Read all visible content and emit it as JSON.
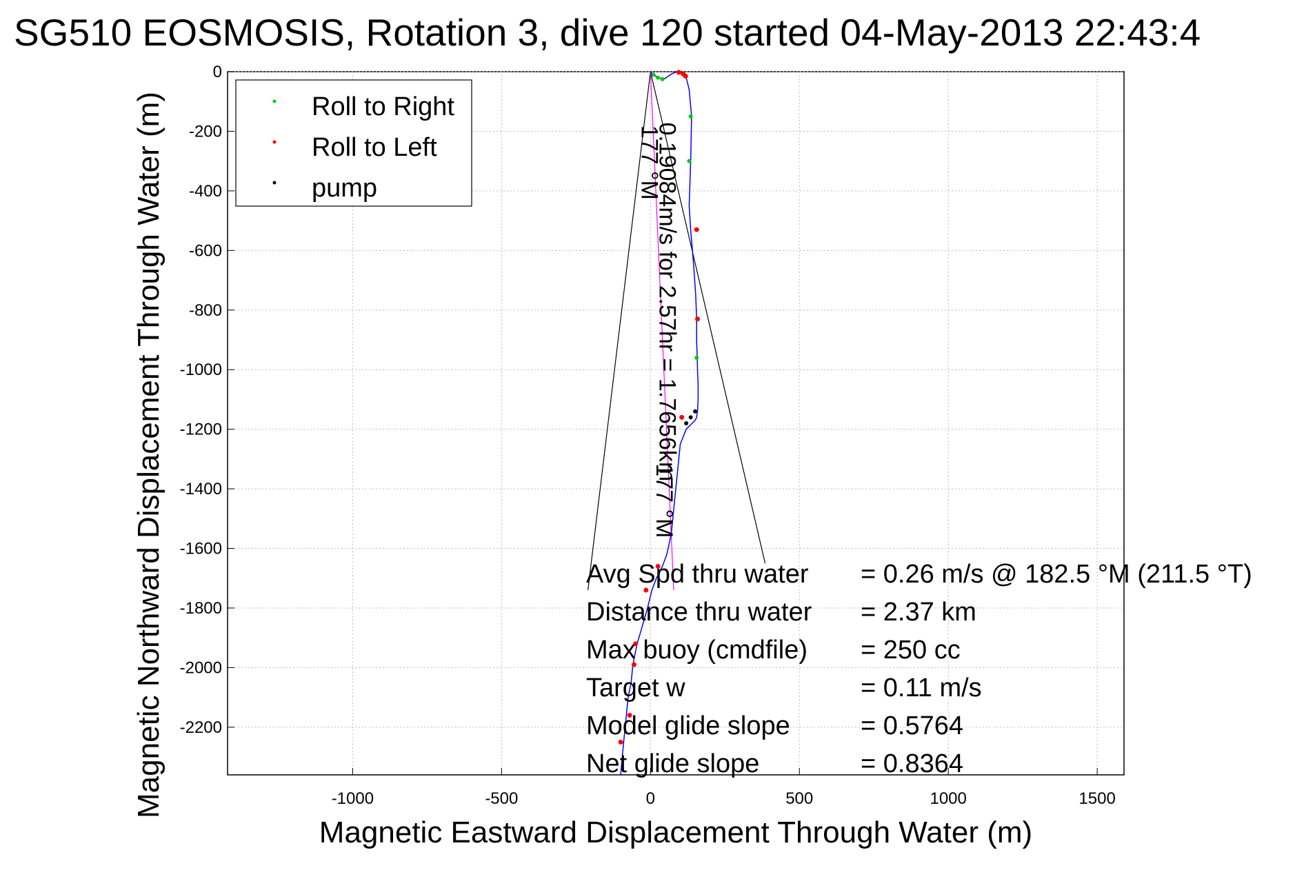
{
  "chart_data": {
    "type": "line",
    "title": "SG510 EOSMOSIS, Rotation 3, dive 120 started 04-May-2013 22:43:4",
    "xlabel": "Magnetic Eastward Displacement Through Water (m)",
    "ylabel": "Magnetic Northward Displacement Through Water (m)",
    "xlim": [
      -1420,
      1590
    ],
    "ylim": [
      -2360,
      0
    ],
    "xticks": [
      -1000,
      -500,
      0,
      500,
      1000,
      1500
    ],
    "yticks": [
      0,
      -200,
      -400,
      -600,
      -800,
      -1000,
      -1200,
      -1400,
      -1600,
      -1800,
      -2000,
      -2200
    ],
    "grid": true,
    "legend": {
      "placement": "top-left",
      "entries": [
        {
          "label": "Roll to Right",
          "color": "#00cc00"
        },
        {
          "label": "Roll to Left",
          "color": "#ff0000"
        },
        {
          "label": "pump",
          "color": "#000000"
        }
      ]
    },
    "track": {
      "color": "#0000ff",
      "x": [
        0,
        10,
        25,
        45,
        60,
        75,
        90,
        105,
        120,
        130,
        138,
        135,
        130,
        135,
        145,
        152,
        155,
        155,
        157,
        158,
        160,
        160,
        158,
        155,
        150,
        140,
        120,
        100,
        90,
        80,
        70,
        55,
        40,
        20,
        5,
        -10,
        -30,
        -45,
        -55,
        -60,
        -65,
        -75,
        -80,
        -85,
        -90,
        -95,
        -100
      ],
      "y": [
        0,
        -10,
        -20,
        -25,
        -15,
        -5,
        0,
        -5,
        -20,
        -60,
        -150,
        -300,
        -450,
        -530,
        -650,
        -750,
        -830,
        -900,
        -960,
        -1000,
        -1050,
        -1100,
        -1140,
        -1160,
        -1170,
        -1180,
        -1200,
        -1250,
        -1350,
        -1450,
        -1550,
        -1620,
        -1660,
        -1700,
        -1740,
        -1800,
        -1870,
        -1920,
        -1970,
        -2000,
        -2050,
        -2100,
        -2150,
        -2200,
        -2250,
        -2300,
        -2360
      ]
    },
    "roll_right_points": {
      "color": "#00cc00",
      "x": [
        10,
        25,
        40,
        130,
        155,
        135
      ],
      "y": [
        -10,
        -20,
        -25,
        -300,
        -960,
        -150
      ]
    },
    "roll_left_points": {
      "color": "#ff0000",
      "x": [
        95,
        110,
        118,
        155,
        158,
        105,
        25,
        -15,
        -50,
        -55,
        -70,
        -100
      ],
      "y": [
        -2,
        -8,
        -15,
        -530,
        -830,
        -1160,
        -1660,
        -1740,
        -1920,
        -1990,
        -2160,
        -2250
      ]
    },
    "pump_points": {
      "color": "#000000",
      "x": [
        120,
        135,
        150
      ],
      "y": [
        -1180,
        -1160,
        -1140
      ]
    },
    "current_line": {
      "color": "#ff00ff",
      "x": [
        0,
        78
      ],
      "y": [
        0,
        -1740
      ]
    },
    "wedge": {
      "apex": [
        0,
        0
      ],
      "left_end": [
        -210,
        -1740
      ],
      "right_end": [
        385,
        -1650
      ]
    },
    "annotations": [
      {
        "text": "0.19084m/s for 2.57hr = 1.7656km",
        "x": 30,
        "y": -170,
        "rotation_deg": 90
      },
      {
        "text": "177 °M",
        "x": -30,
        "y": -180,
        "rotation_deg": 90
      },
      {
        "text": "177 °M",
        "x": 20,
        "y": -1315,
        "rotation_deg": 90
      }
    ],
    "stats": [
      {
        "label": "Avg Spd thru water",
        "value": "=  0.26 m/s @ 182.5 °M (211.5 °T)"
      },
      {
        "label": "Distance thru water",
        "value": "=  2.37 km"
      },
      {
        "label": "Max buoy (cmdfile)",
        "value": "= 250 cc"
      },
      {
        "label": "Target w",
        "value": "= 0.11 m/s"
      },
      {
        "label": "Model glide slope",
        "value": "= 0.5764"
      },
      {
        "label": "Net glide slope",
        "value": "= 0.8364"
      }
    ]
  }
}
